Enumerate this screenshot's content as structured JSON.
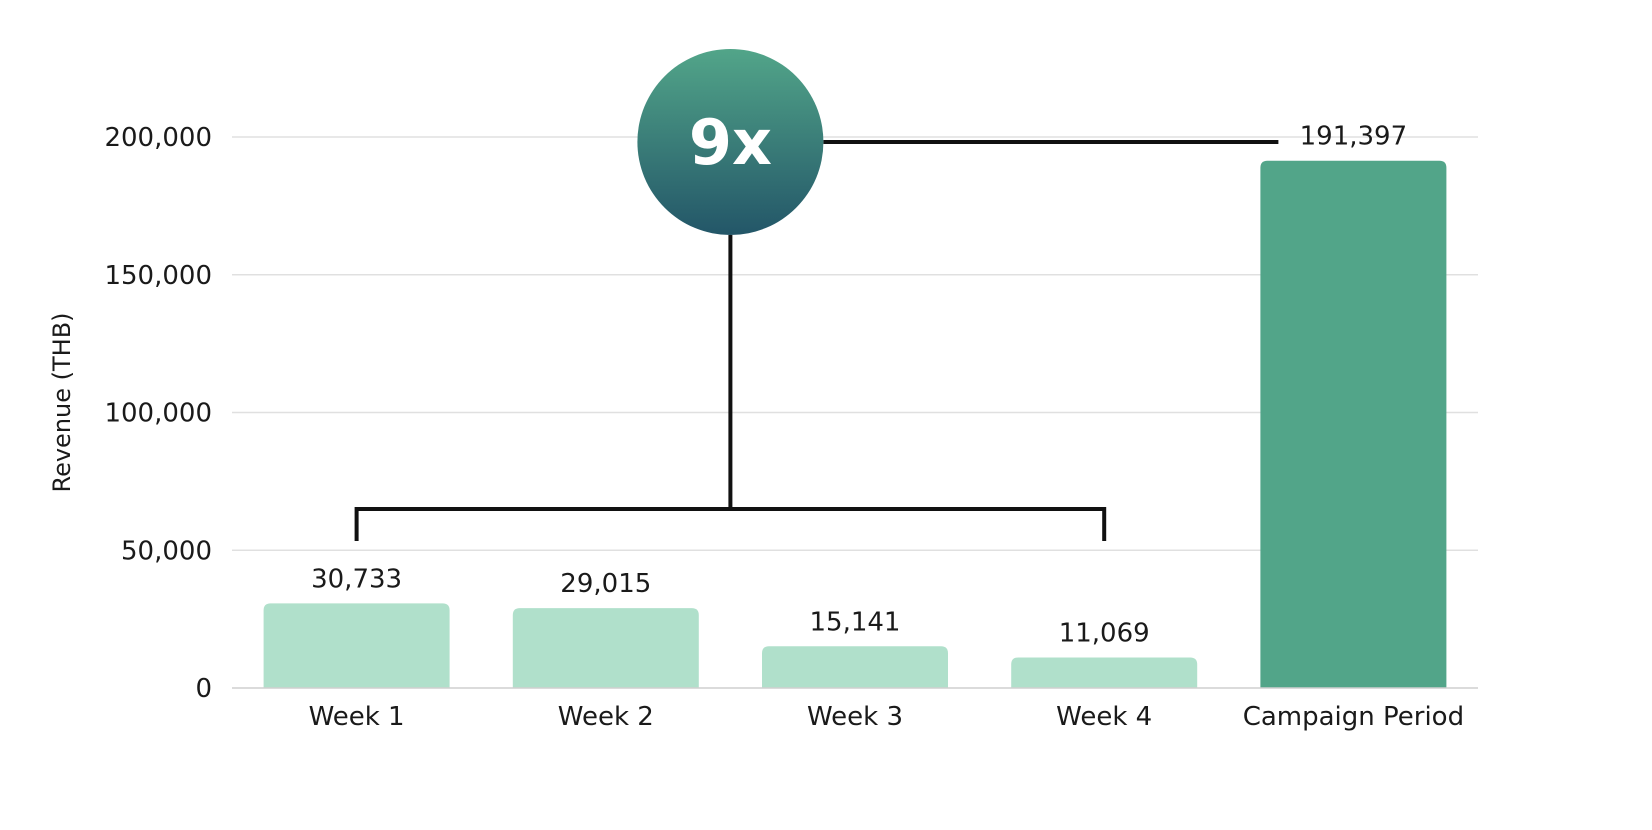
{
  "chart_data": {
    "type": "bar",
    "categories": [
      "Week 1",
      "Week 2",
      "Week 3",
      "Week 4",
      "Campaign Period"
    ],
    "values": [
      30733,
      29015,
      15141,
      11069,
      191397
    ],
    "value_labels": [
      "30,733",
      "29,015",
      "15,141",
      "11,069",
      "191,397"
    ],
    "ylabel": "Revenue (THB)",
    "xlabel": "",
    "ylim": [
      0,
      200000
    ],
    "yticks": [
      0,
      50000,
      100000,
      150000,
      200000
    ],
    "ytick_labels": [
      "0",
      "50,000",
      "100,000",
      "150,000",
      "200,000"
    ],
    "grid": true,
    "colors": {
      "weekly_bars": "#b0e0cb",
      "campaign_bar": "#52a589",
      "badge_top": "#52a589",
      "badge_bottom": "#235668",
      "connector": "#111111",
      "grid": "#e0e0e0"
    },
    "annotation": {
      "text": "9x",
      "compares": [
        "Week 1",
        "Week 2",
        "Week 3",
        "Week 4"
      ],
      "against": "Campaign Period"
    }
  }
}
